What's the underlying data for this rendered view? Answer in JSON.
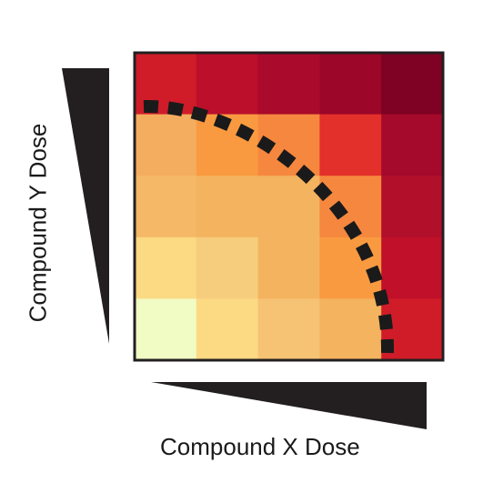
{
  "x_axis": {
    "label": "Compound X Dose",
    "wedge_color": "#231f20"
  },
  "y_axis": {
    "label": "Compound Y Dose",
    "wedge_color": "#231f20"
  },
  "heatmap": {
    "rows": 5,
    "cols": 5,
    "colors_top_to_bottom": [
      [
        "#d01c29",
        "#bb0f2b",
        "#aa0a2b",
        "#9c0629",
        "#7f0124"
      ],
      [
        "#f4ad5e",
        "#fa9a40",
        "#f6873f",
        "#e3302a",
        "#a5092b"
      ],
      [
        "#f4b866",
        "#f4b35f",
        "#f4b35f",
        "#f6873f",
        "#b20f2b"
      ],
      [
        "#fcd983",
        "#f6cd7d",
        "#f4b35f",
        "#fa9a40",
        "#c0102a"
      ],
      [
        "#f1fbc4",
        "#fcd983",
        "#f6c274",
        "#f4b35f",
        "#d01c29"
      ]
    ],
    "border_color": "#231f20"
  },
  "isobole": {
    "style": "dashed",
    "color": "#1a1a1a"
  }
}
